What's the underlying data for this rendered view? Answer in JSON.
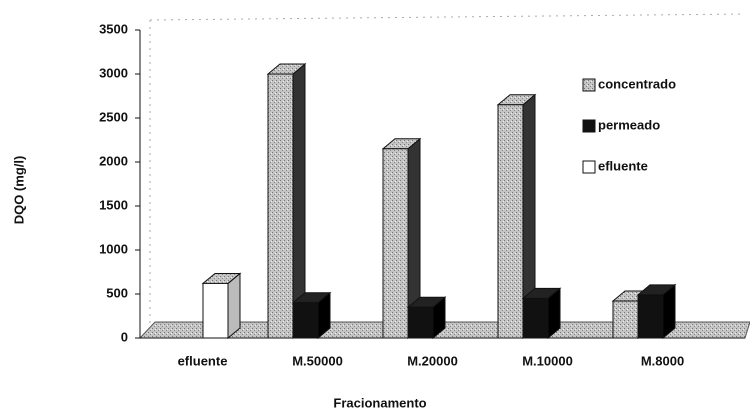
{
  "chart_data": {
    "type": "bar3d",
    "x_label": "Fracionamento",
    "y_label": "DQO (mg/l)",
    "categories": [
      "efluente",
      "M.50000",
      "M.20000",
      "M.10000",
      "M.8000"
    ],
    "series": [
      {
        "name": "concentrado",
        "color": "#b4b4b4",
        "values": [
          null,
          3000,
          2150,
          2650,
          420
        ]
      },
      {
        "name": "permeado",
        "color": "#111111",
        "values": [
          null,
          400,
          350,
          450,
          490
        ]
      },
      {
        "name": "efluente",
        "color": "#ffffff",
        "values": [
          620,
          null,
          null,
          null,
          null
        ]
      }
    ],
    "ylim": [
      0,
      3500
    ],
    "yticks": [
      0,
      500,
      1000,
      1500,
      2000,
      2500,
      3000,
      3500
    ]
  }
}
